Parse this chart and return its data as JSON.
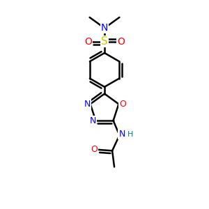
{
  "bg_color": "#ffffff",
  "bond_color": "black",
  "bond_width": 1.8,
  "atom_colors": {
    "C": "black",
    "N": "#0000ff",
    "O": "#ff0000",
    "S": "#cccc00",
    "H": "#008080"
  },
  "font_size": 10,
  "fig_size": [
    3.0,
    3.0
  ],
  "dpi": 100,
  "xlim": [
    0,
    10
  ],
  "ylim": [
    0,
    10
  ]
}
